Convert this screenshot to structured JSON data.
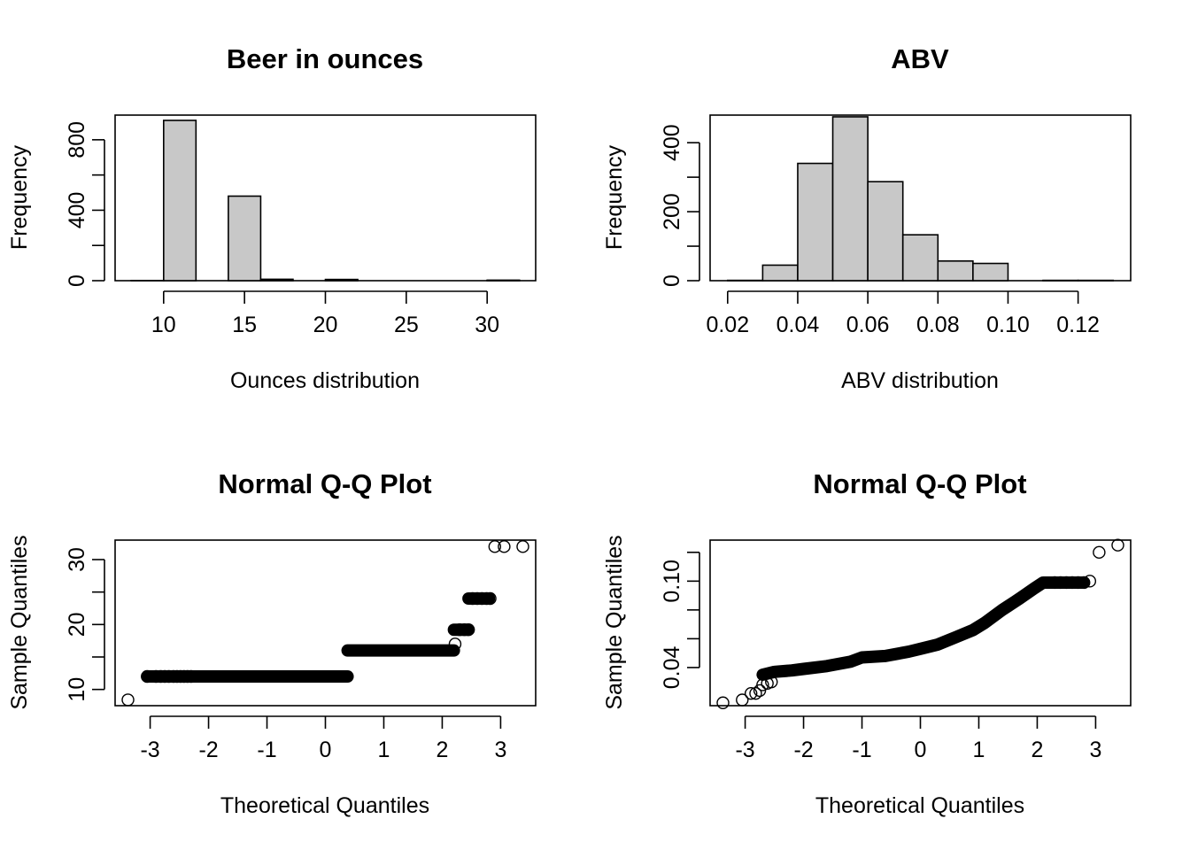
{
  "colors": {
    "bar_fill": "#c8c8c8",
    "ink": "#000000",
    "background": "#ffffff"
  },
  "chart_data": [
    {
      "type": "bar",
      "histogram": true,
      "title": "Beer in ounces",
      "xlabel": "Ounces distribution",
      "ylabel": "Frequency",
      "breaks": [
        8,
        10,
        12,
        14,
        16,
        18,
        20,
        22,
        24,
        26,
        28,
        30,
        32
      ],
      "values": [
        1,
        910,
        0,
        480,
        8,
        0,
        7,
        0,
        0,
        0,
        0,
        3
      ],
      "xlim": [
        7,
        33
      ],
      "ylim": [
        0,
        940
      ],
      "xticks": [
        10,
        15,
        20,
        25,
        30
      ],
      "yticks": [
        0,
        200,
        400,
        600,
        800
      ],
      "ytick_labels": [
        "0",
        "",
        "400",
        "",
        "800"
      ],
      "grid": false
    },
    {
      "type": "bar",
      "histogram": true,
      "title": "ABV",
      "xlabel": "ABV distribution",
      "ylabel": "Frequency",
      "breaks": [
        0.02,
        0.03,
        0.04,
        0.05,
        0.06,
        0.07,
        0.08,
        0.09,
        0.1,
        0.11,
        0.12,
        0.13
      ],
      "values": [
        1,
        45,
        340,
        475,
        287,
        133,
        57,
        50,
        0,
        1,
        1
      ],
      "xlim": [
        0.015,
        0.135
      ],
      "ylim": [
        0,
        480
      ],
      "xticks": [
        0.02,
        0.04,
        0.06,
        0.08,
        0.1,
        0.12
      ],
      "xtick_labels": [
        "0.02",
        "0.04",
        "0.06",
        "0.08",
        "0.10",
        "0.12"
      ],
      "yticks": [
        0,
        100,
        200,
        300,
        400
      ],
      "ytick_labels": [
        "0",
        "",
        "200",
        "",
        "400"
      ],
      "grid": false
    },
    {
      "type": "scatter",
      "title": "Normal Q-Q Plot",
      "xlabel": "Theoretical Quantiles",
      "ylabel": "Sample Quantiles",
      "xlim": [
        -3.6,
        3.6
      ],
      "ylim": [
        7.5,
        33
      ],
      "xticks": [
        -3,
        -2,
        -1,
        0,
        1,
        2,
        3
      ],
      "yticks": [
        10,
        15,
        20,
        25,
        30
      ],
      "ytick_labels": [
        "10",
        "",
        "20",
        "",
        "30"
      ],
      "segments": [
        {
          "x_from": -3.05,
          "x_to": 0.38,
          "y": 12
        },
        {
          "x_from": 0.38,
          "x_to": 2.2,
          "y": 16
        },
        {
          "x_from": 2.2,
          "x_to": 2.45,
          "y": 19.2
        },
        {
          "x_from": 2.45,
          "x_to": 2.8,
          "y": 24
        }
      ],
      "points": [
        [
          -3.38,
          8.4
        ],
        [
          -3.05,
          12
        ],
        [
          -2.9,
          12
        ],
        [
          -2.82,
          12
        ],
        [
          -2.75,
          12
        ],
        [
          -2.68,
          12
        ],
        [
          -2.6,
          12
        ],
        [
          -2.54,
          12
        ],
        [
          -2.48,
          12
        ],
        [
          -2.42,
          12
        ],
        [
          -2.36,
          12
        ],
        [
          -2.3,
          12
        ],
        [
          2.22,
          17
        ],
        [
          2.3,
          19.2
        ],
        [
          2.38,
          19.2
        ],
        [
          2.45,
          19.2
        ],
        [
          2.52,
          24
        ],
        [
          2.6,
          24
        ],
        [
          2.68,
          24
        ],
        [
          2.76,
          24
        ],
        [
          2.82,
          24
        ],
        [
          2.9,
          32
        ],
        [
          3.06,
          32
        ],
        [
          3.38,
          32
        ]
      ],
      "grid": false
    },
    {
      "type": "scatter",
      "title": "Normal Q-Q Plot",
      "xlabel": "Theoretical Quantiles",
      "ylabel": "Sample Quantiles",
      "xlim": [
        -3.6,
        3.6
      ],
      "ylim": [
        0.0135,
        0.1285
      ],
      "xticks": [
        -3,
        -2,
        -1,
        0,
        1,
        2,
        3
      ],
      "yticks": [
        0.04,
        0.06,
        0.08,
        0.1,
        0.12
      ],
      "ytick_labels": [
        "0.04",
        "",
        "",
        "0.10",
        ""
      ],
      "curve": [
        [
          -2.7,
          0.035
        ],
        [
          -2.5,
          0.037
        ],
        [
          -2.2,
          0.038
        ],
        [
          -2.0,
          0.039
        ],
        [
          -1.6,
          0.041
        ],
        [
          -1.2,
          0.044
        ],
        [
          -1.0,
          0.047
        ],
        [
          -0.6,
          0.048
        ],
        [
          -0.2,
          0.051
        ],
        [
          0.0,
          0.053
        ],
        [
          0.3,
          0.056
        ],
        [
          0.6,
          0.061
        ],
        [
          0.9,
          0.066
        ],
        [
          1.1,
          0.071
        ],
        [
          1.4,
          0.08
        ],
        [
          1.7,
          0.088
        ],
        [
          1.95,
          0.095
        ],
        [
          2.1,
          0.099
        ],
        [
          2.8,
          0.099
        ]
      ],
      "points": [
        [
          -3.38,
          0.0155
        ],
        [
          -3.05,
          0.0175
        ],
        [
          -2.9,
          0.022
        ],
        [
          -2.82,
          0.022
        ],
        [
          -2.75,
          0.024
        ],
        [
          -2.7,
          0.028
        ],
        [
          -2.62,
          0.029
        ],
        [
          -2.55,
          0.03
        ],
        [
          2.3,
          0.099
        ],
        [
          2.4,
          0.099
        ],
        [
          2.5,
          0.099
        ],
        [
          2.6,
          0.099
        ],
        [
          2.7,
          0.099
        ],
        [
          2.8,
          0.099
        ],
        [
          2.9,
          0.1
        ],
        [
          3.06,
          0.12
        ],
        [
          3.38,
          0.125
        ]
      ],
      "grid": false
    }
  ]
}
